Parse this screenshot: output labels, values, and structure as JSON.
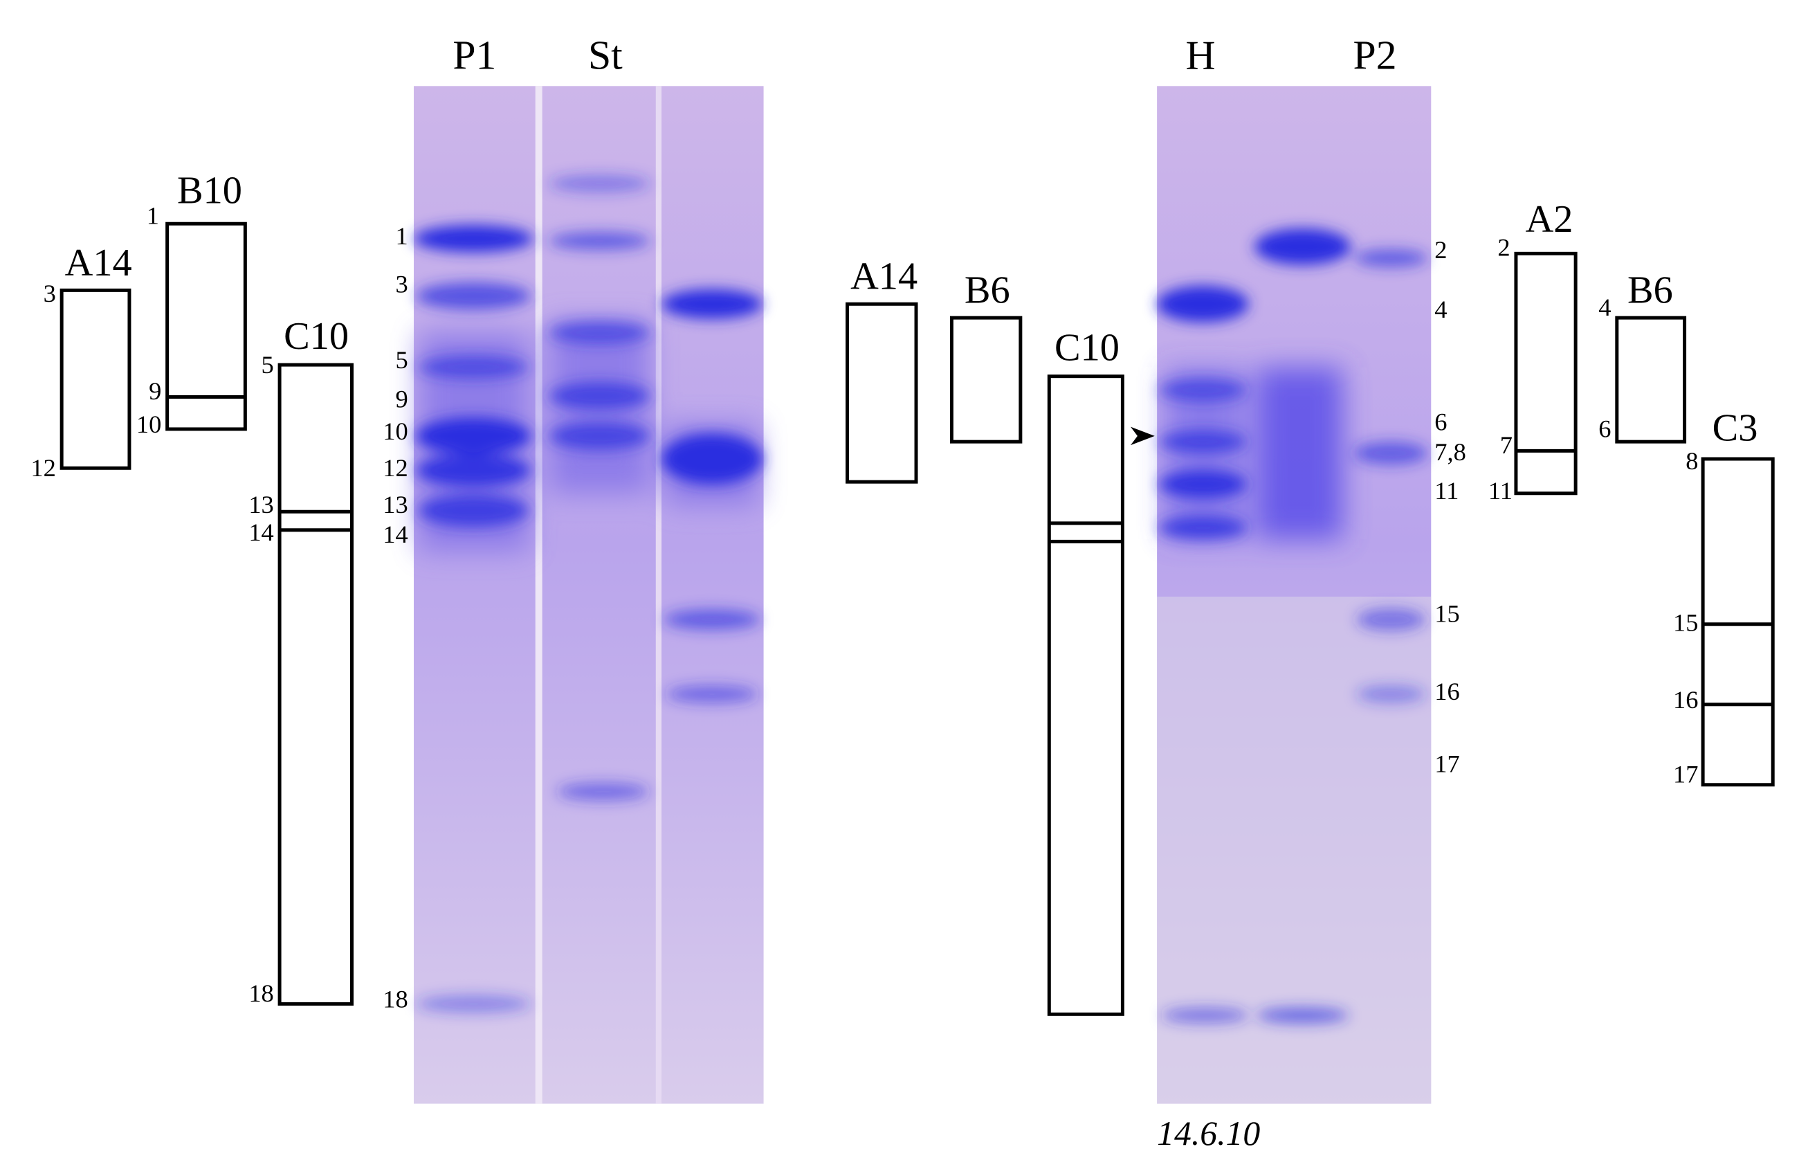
{
  "gel_left": {
    "lanes": [
      "P1",
      "St"
    ],
    "band_labels": [
      "1",
      "3",
      "5",
      "9",
      "10",
      "12",
      "13",
      "14",
      "18"
    ]
  },
  "gel_right": {
    "lanes": [
      "H",
      "P2"
    ],
    "band_labels": [
      "2",
      "4",
      "6",
      "7,8",
      "11",
      "15",
      "16",
      "17"
    ],
    "caption": "14.6.10"
  },
  "schemes_left": [
    {
      "label": "A14",
      "marks": [
        "3",
        "12"
      ]
    },
    {
      "label": "B10",
      "marks": [
        "1",
        "9",
        "10"
      ]
    },
    {
      "label": "C10",
      "marks": [
        "5",
        "13",
        "14",
        "18"
      ]
    }
  ],
  "schemes_middle": [
    {
      "label": "A14"
    },
    {
      "label": "B6"
    },
    {
      "label": "C10"
    }
  ],
  "schemes_right": [
    {
      "label": "A2",
      "marks": [
        "2",
        "7",
        "11"
      ]
    },
    {
      "label": "B6",
      "marks": [
        "4",
        "6"
      ]
    },
    {
      "label": "C3",
      "marks": [
        "8",
        "15",
        "16",
        "17"
      ]
    }
  ]
}
